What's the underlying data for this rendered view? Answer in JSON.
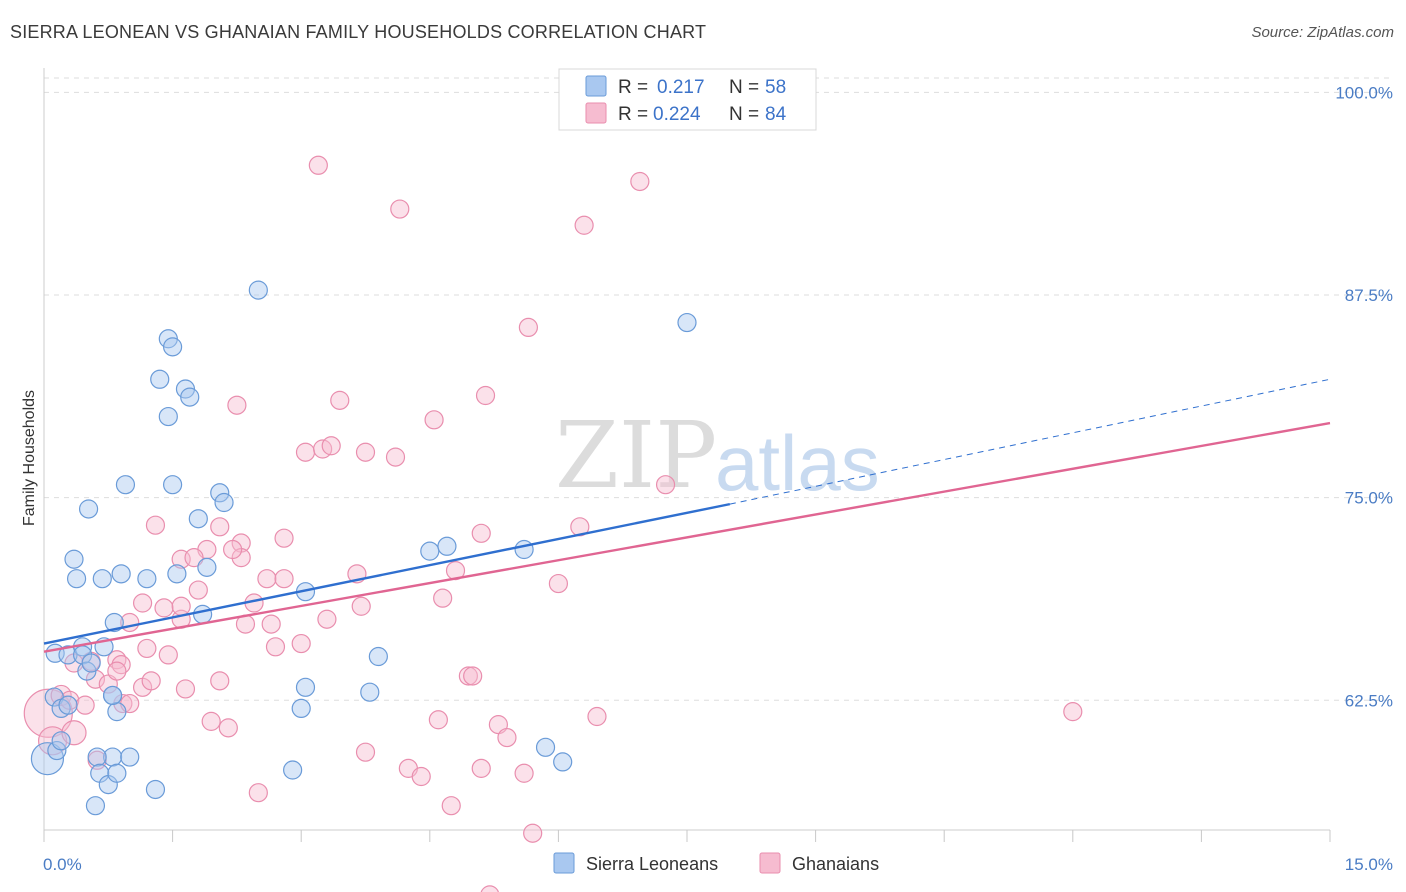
{
  "title": "SIERRA LEONEAN VS GHANAIAN FAMILY HOUSEHOLDS CORRELATION CHART",
  "source": "Source: ZipAtlas.com",
  "watermark": {
    "zip": "ZIP",
    "atlas": "atlas"
  },
  "colors": {
    "blue_fill": "#a9c8f0",
    "blue_stroke": "#6a9bd8",
    "blue_line": "#2f6fcf",
    "pink_fill": "#f6bcd0",
    "pink_stroke": "#e98eae",
    "pink_line": "#e06592",
    "grid": "#dddddd",
    "tick_label": "#4a7cc4"
  },
  "legend": {
    "row1": {
      "r_label": "R =",
      "r_value": "0.217",
      "n_label": "N =",
      "n_value": "58"
    },
    "row2": {
      "r_label": "R =",
      "r_value": "0.224",
      "n_label": "N =",
      "n_value": "84"
    }
  },
  "chart_data": {
    "type": "scatter",
    "title": "SIERRA LEONEAN VS GHANAIAN FAMILY HOUSEHOLDS CORRELATION CHART",
    "xlabel": "",
    "ylabel": "Family Households",
    "xlim": [
      0,
      15
    ],
    "ylim": [
      54.5,
      101.5
    ],
    "x_tick_labels": {
      "left": "0.0%",
      "right": "15.0%"
    },
    "y_ticks": [
      {
        "value": 100,
        "label": "100.0%"
      },
      {
        "value": 87.5,
        "label": "87.5%"
      },
      {
        "value": 75,
        "label": "75.0%"
      },
      {
        "value": 62.5,
        "label": "62.5%"
      }
    ],
    "grid": true,
    "legend_position": "top-center",
    "series": [
      {
        "name": "Sierra Leoneans",
        "r": 0.217,
        "n": 58,
        "trend": {
          "x0": 0.0,
          "y0": 66.0,
          "x_solid_end": 8.0,
          "y_solid_end": 74.6,
          "x1": 15.0,
          "y1": 82.3
        },
        "points": [
          [
            0.04,
            58.9,
            16
          ],
          [
            0.15,
            59.4,
            9
          ],
          [
            0.2,
            60.0,
            9
          ],
          [
            0.12,
            62.7,
            9
          ],
          [
            0.2,
            62.0,
            9
          ],
          [
            0.28,
            62.2,
            9
          ],
          [
            0.13,
            65.4,
            9
          ],
          [
            0.28,
            65.3,
            9
          ],
          [
            0.45,
            65.8,
            9
          ],
          [
            0.45,
            65.3,
            9
          ],
          [
            0.5,
            64.3,
            9
          ],
          [
            0.55,
            64.8,
            9
          ],
          [
            0.7,
            65.8,
            9
          ],
          [
            0.8,
            62.8,
            9
          ],
          [
            0.85,
            61.8,
            9
          ],
          [
            0.8,
            59.0,
            9
          ],
          [
            0.62,
            59.0,
            9
          ],
          [
            0.65,
            58.0,
            9
          ],
          [
            0.75,
            57.3,
            9
          ],
          [
            0.85,
            58.0,
            9
          ],
          [
            1.0,
            59.0,
            9
          ],
          [
            1.3,
            57.0,
            9
          ],
          [
            0.6,
            56.0,
            9
          ],
          [
            0.8,
            62.8,
            9
          ],
          [
            0.35,
            71.2,
            9
          ],
          [
            0.38,
            70.0,
            9
          ],
          [
            0.68,
            70.0,
            9
          ],
          [
            0.9,
            70.3,
            9
          ],
          [
            0.82,
            67.3,
            9
          ],
          [
            1.2,
            70.0,
            9
          ],
          [
            1.55,
            70.3,
            9
          ],
          [
            1.9,
            70.7,
            9
          ],
          [
            1.85,
            67.8,
            9
          ],
          [
            0.52,
            74.3,
            9
          ],
          [
            0.95,
            75.8,
            9
          ],
          [
            1.5,
            75.8,
            9
          ],
          [
            2.05,
            75.3,
            9
          ],
          [
            2.1,
            74.7,
            9
          ],
          [
            1.8,
            73.7,
            9
          ],
          [
            1.45,
            80.0,
            9
          ],
          [
            1.35,
            82.3,
            9
          ],
          [
            1.65,
            81.7,
            9
          ],
          [
            1.7,
            81.2,
            9
          ],
          [
            1.45,
            84.8,
            9
          ],
          [
            1.5,
            84.3,
            9
          ],
          [
            2.5,
            87.8,
            9
          ],
          [
            7.5,
            85.8,
            9
          ],
          [
            3.05,
            69.2,
            9
          ],
          [
            4.5,
            71.7,
            9
          ],
          [
            4.7,
            72.0,
            9
          ],
          [
            5.6,
            71.8,
            9
          ],
          [
            3.05,
            63.3,
            9
          ],
          [
            3.0,
            62.0,
            9
          ],
          [
            3.8,
            63.0,
            9
          ],
          [
            3.9,
            65.2,
            9
          ],
          [
            2.9,
            58.2,
            9
          ],
          [
            5.85,
            59.6,
            9
          ],
          [
            6.05,
            58.7,
            9
          ]
        ]
      },
      {
        "name": "Ghanaians",
        "r": 0.224,
        "n": 84,
        "trend": {
          "x0": 0.0,
          "y0": 65.5,
          "x1": 15.0,
          "y1": 79.6
        },
        "points": [
          [
            0.05,
            61.7,
            24
          ],
          [
            0.1,
            60.0,
            14
          ],
          [
            0.35,
            60.5,
            12
          ],
          [
            0.2,
            62.8,
            10
          ],
          [
            0.3,
            62.5,
            9
          ],
          [
            0.48,
            62.2,
            9
          ],
          [
            0.35,
            64.8,
            9
          ],
          [
            0.6,
            63.8,
            9
          ],
          [
            0.75,
            63.5,
            9
          ],
          [
            0.85,
            65.0,
            9
          ],
          [
            0.9,
            64.7,
            9
          ],
          [
            0.62,
            58.8,
            9
          ],
          [
            0.92,
            62.3,
            9
          ],
          [
            1.0,
            62.3,
            9
          ],
          [
            1.15,
            63.3,
            9
          ],
          [
            0.55,
            64.9,
            9
          ],
          [
            0.85,
            64.3,
            9
          ],
          [
            1.2,
            65.7,
            9
          ],
          [
            1.45,
            65.3,
            9
          ],
          [
            1.25,
            63.7,
            9
          ],
          [
            1.6,
            67.5,
            9
          ],
          [
            1.0,
            67.3,
            9
          ],
          [
            1.15,
            68.5,
            9
          ],
          [
            1.4,
            68.2,
            9
          ],
          [
            1.6,
            68.3,
            9
          ],
          [
            1.8,
            69.3,
            9
          ],
          [
            1.6,
            71.2,
            9
          ],
          [
            1.9,
            71.8,
            9
          ],
          [
            2.05,
            73.2,
            9
          ],
          [
            2.3,
            72.2,
            9
          ],
          [
            2.3,
            71.3,
            9
          ],
          [
            1.75,
            71.3,
            9
          ],
          [
            2.2,
            71.8,
            9
          ],
          [
            1.3,
            73.3,
            9
          ],
          [
            2.6,
            70.0,
            9
          ],
          [
            2.8,
            70.0,
            9
          ],
          [
            2.8,
            72.5,
            9
          ],
          [
            2.35,
            67.2,
            9
          ],
          [
            2.65,
            67.2,
            9
          ],
          [
            2.7,
            65.8,
            9
          ],
          [
            2.45,
            68.5,
            9
          ],
          [
            3.0,
            66.0,
            9
          ],
          [
            1.65,
            63.2,
            9
          ],
          [
            2.05,
            63.7,
            9
          ],
          [
            1.95,
            61.2,
            9
          ],
          [
            2.15,
            60.8,
            9
          ],
          [
            2.5,
            56.8,
            9
          ],
          [
            3.3,
            67.5,
            9
          ],
          [
            3.65,
            70.3,
            9
          ],
          [
            3.7,
            68.3,
            9
          ],
          [
            3.75,
            59.3,
            9
          ],
          [
            4.25,
            58.3,
            9
          ],
          [
            4.4,
            57.8,
            9
          ],
          [
            4.6,
            61.3,
            9
          ],
          [
            4.75,
            56.0,
            9
          ],
          [
            4.95,
            64.0,
            9
          ],
          [
            5.0,
            64.0,
            9
          ],
          [
            5.1,
            58.3,
            9
          ],
          [
            5.3,
            61.0,
            9
          ],
          [
            5.4,
            60.2,
            9
          ],
          [
            5.6,
            58.0,
            9
          ],
          [
            5.7,
            54.3,
            9
          ],
          [
            5.2,
            50.5,
            9
          ],
          [
            3.05,
            77.8,
            9
          ],
          [
            3.25,
            78.0,
            9
          ],
          [
            3.35,
            78.2,
            9
          ],
          [
            3.75,
            77.8,
            9
          ],
          [
            4.1,
            77.5,
            9
          ],
          [
            3.45,
            81.0,
            9
          ],
          [
            2.25,
            80.7,
            9
          ],
          [
            4.55,
            79.8,
            9
          ],
          [
            5.15,
            81.3,
            9
          ],
          [
            4.8,
            70.5,
            9
          ],
          [
            4.65,
            68.8,
            9
          ],
          [
            5.1,
            72.8,
            9
          ],
          [
            6.0,
            69.7,
            9
          ],
          [
            6.25,
            73.2,
            9
          ],
          [
            6.45,
            61.5,
            9
          ],
          [
            7.25,
            75.8,
            9
          ],
          [
            5.65,
            85.5,
            9
          ],
          [
            6.3,
            91.8,
            9
          ],
          [
            4.15,
            92.8,
            9
          ],
          [
            3.2,
            95.5,
            9
          ],
          [
            6.95,
            94.5,
            9
          ],
          [
            12.0,
            61.8,
            9
          ]
        ]
      }
    ]
  },
  "bottom_legend": {
    "series1": "Sierra Leoneans",
    "series2": "Ghanaians"
  }
}
